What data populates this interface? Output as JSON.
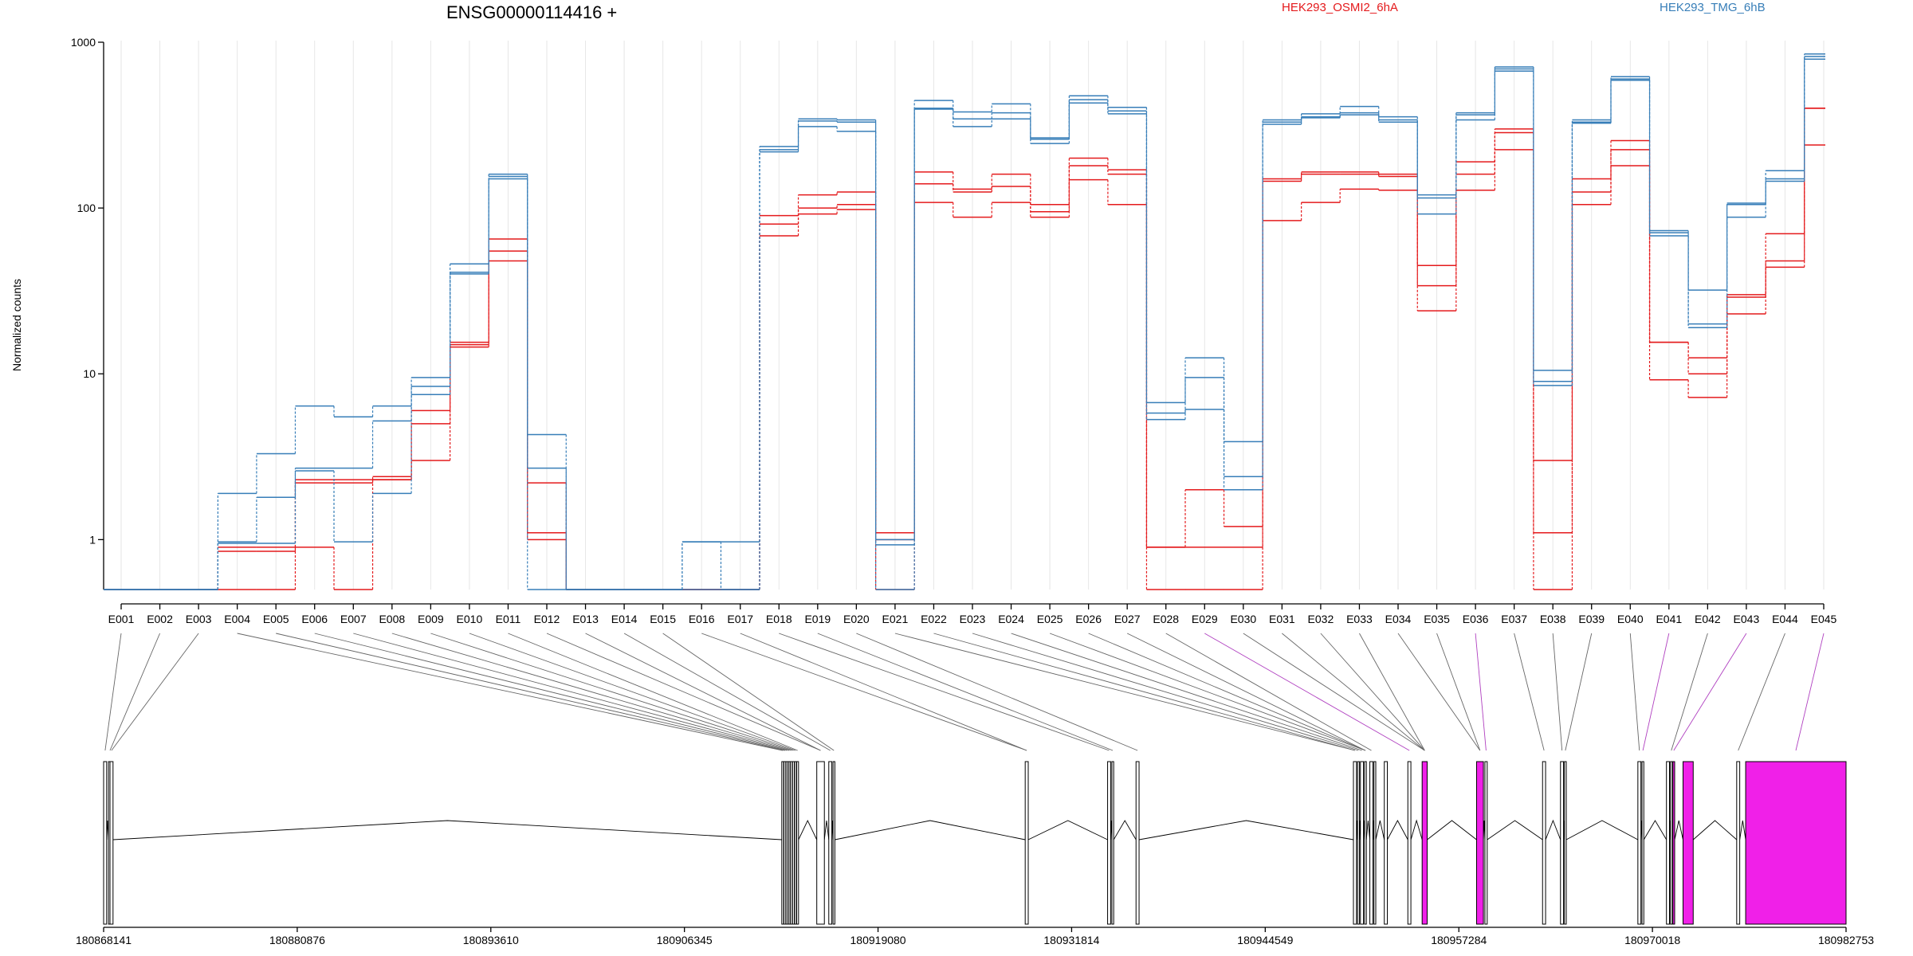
{
  "chart_data": {
    "type": "line",
    "title": "ENSG00000114416 +",
    "ylabel": "Normalized counts",
    "xlabel": "",
    "y_scale": "log",
    "ylim": [
      0.5,
      1000
    ],
    "y_ticks": [
      {
        "value": 1,
        "label": "1"
      },
      {
        "value": 10,
        "label": "10"
      },
      {
        "value": 100,
        "label": "100"
      },
      {
        "value": 1000,
        "label": "1000"
      }
    ],
    "grid": "vertical light lines at each exon bin",
    "legend_position": "top-right",
    "categories": [
      "E001",
      "E002",
      "E003",
      "E004",
      "E005",
      "E006",
      "E007",
      "E008",
      "E009",
      "E010",
      "E011",
      "E012",
      "E013",
      "E014",
      "E015",
      "E016",
      "E017",
      "E018",
      "E019",
      "E020",
      "E021",
      "E022",
      "E023",
      "E024",
      "E025",
      "E026",
      "E027",
      "E028",
      "E029",
      "E030",
      "E031",
      "E032",
      "E033",
      "E034",
      "E035",
      "E036",
      "E037",
      "E038",
      "E039",
      "E040",
      "E041",
      "E042",
      "E043",
      "E044",
      "E045"
    ],
    "highlighted_exons": [
      "E029",
      "E036",
      "E041",
      "E043",
      "E045"
    ],
    "series": [
      {
        "name": "HEK293_OSMI2_6hA",
        "group": "HEK293_OSMI2_6hA",
        "color": "#e41a1c",
        "values": [
          0.5,
          0.5,
          0.5,
          0.9,
          0.9,
          2.3,
          2.3,
          2.4,
          6.0,
          15.5,
          65,
          2.2,
          0.5,
          0.5,
          0.5,
          0.5,
          0.5,
          90,
          120,
          125,
          1.1,
          165,
          130,
          160,
          105,
          200,
          170,
          0.9,
          2.0,
          1.2,
          150,
          165,
          165,
          160,
          45,
          190,
          300,
          3.0,
          150,
          255,
          15.5,
          12.5,
          30,
          70,
          400
        ]
      },
      {
        "name": "HEK293_OSMI2_6hA",
        "group": "HEK293_OSMI2_6hA",
        "color": "#e41a1c",
        "values": [
          0.5,
          0.5,
          0.5,
          0.85,
          0.85,
          2.2,
          2.2,
          2.3,
          5.0,
          15,
          55,
          1.1,
          0.5,
          0.5,
          0.5,
          0.5,
          0.5,
          80,
          100,
          105,
          1.0,
          140,
          125,
          135,
          95,
          180,
          160,
          0.9,
          0.9,
          0.9,
          145,
          160,
          160,
          155,
          34,
          160,
          285,
          1.1,
          125,
          225,
          15.5,
          10,
          29,
          48,
          400
        ]
      },
      {
        "name": "HEK293_OSMI2_6hA",
        "group": "HEK293_OSMI2_6hA",
        "color": "#e41a1c",
        "values": [
          0.5,
          0.5,
          0.5,
          0.5,
          0.5,
          0.9,
          0.5,
          2.3,
          3.0,
          14.5,
          48,
          1.0,
          0.5,
          0.5,
          0.5,
          0.5,
          0.5,
          68,
          92,
          98,
          0.5,
          108,
          88,
          108,
          88,
          148,
          105,
          0.5,
          0.5,
          0.5,
          84,
          108,
          130,
          128,
          24,
          128,
          225,
          0.5,
          105,
          180,
          9.2,
          7.2,
          23,
          44,
          240
        ]
      },
      {
        "name": "HEK293_TMG_6hB",
        "group": "HEK293_TMG_6hB",
        "color": "#377eb8",
        "values": [
          0.5,
          0.5,
          0.5,
          1.9,
          3.3,
          6.4,
          5.5,
          6.4,
          9.5,
          46,
          160,
          4.3,
          0.5,
          0.5,
          0.5,
          0.97,
          0.97,
          235,
          345,
          340,
          1.0,
          445,
          380,
          425,
          265,
          475,
          405,
          6.7,
          12.5,
          3.9,
          340,
          370,
          410,
          355,
          120,
          375,
          710,
          10.5,
          340,
          620,
          73,
          32,
          107,
          168,
          850
        ]
      },
      {
        "name": "HEK293_TMG_6hB",
        "group": "HEK293_TMG_6hB",
        "color": "#377eb8",
        "values": [
          0.5,
          0.5,
          0.5,
          0.97,
          1.8,
          2.7,
          2.7,
          5.2,
          8.4,
          41,
          155,
          2.7,
          0.5,
          0.5,
          0.5,
          0.97,
          0.5,
          225,
          335,
          330,
          0.93,
          400,
          345,
          375,
          260,
          450,
          385,
          5.8,
          9.5,
          2.4,
          330,
          355,
          375,
          340,
          115,
          365,
          690,
          9.0,
          330,
          600,
          71,
          20,
          105,
          150,
          820
        ]
      },
      {
        "name": "HEK293_TMG_6hB",
        "group": "HEK293_TMG_6hB",
        "color": "#377eb8",
        "values": [
          0.5,
          0.5,
          0.5,
          0.95,
          0.95,
          2.6,
          0.97,
          1.9,
          7.5,
          40,
          150,
          0.5,
          0.5,
          0.5,
          0.5,
          0.5,
          0.5,
          218,
          310,
          290,
          0.5,
          395,
          310,
          345,
          245,
          430,
          370,
          5.3,
          6.1,
          2.0,
          320,
          350,
          365,
          330,
          92,
          340,
          670,
          8.5,
          325,
          590,
          68,
          19,
          88,
          145,
          790
        ]
      }
    ],
    "gene_model": {
      "coordinate_ticks": [
        "180868141",
        "180880876",
        "180893610",
        "180906345",
        "180919080",
        "180931814",
        "180944549",
        "180957284",
        "180970018",
        "180982753"
      ],
      "range": [
        180868141,
        180982753
      ],
      "exons": [
        {
          "start": 180868141,
          "end": 180868340,
          "highlight": false
        },
        {
          "start": 180868460,
          "end": 180868660,
          "highlight": false
        },
        {
          "start": 180868560,
          "end": 180868760,
          "highlight": false
        },
        {
          "start": 180912750,
          "end": 180912870,
          "highlight": false
        },
        {
          "start": 180912890,
          "end": 180913010,
          "highlight": false
        },
        {
          "start": 180913030,
          "end": 180913150,
          "highlight": false
        },
        {
          "start": 180913170,
          "end": 180913290,
          "highlight": false
        },
        {
          "start": 180913310,
          "end": 180913430,
          "highlight": false
        },
        {
          "start": 180913450,
          "end": 180913570,
          "highlight": false
        },
        {
          "start": 180913590,
          "end": 180913710,
          "highlight": false
        },
        {
          "start": 180913730,
          "end": 180913850,
          "highlight": false
        },
        {
          "start": 180915050,
          "end": 180915550,
          "highlight": false
        },
        {
          "start": 180915840,
          "end": 180916040,
          "highlight": false
        },
        {
          "start": 180916120,
          "end": 180916240,
          "highlight": false
        },
        {
          "start": 180928760,
          "end": 180928960,
          "highlight": false
        },
        {
          "start": 180934180,
          "end": 180934380,
          "highlight": false
        },
        {
          "start": 180934460,
          "end": 180934580,
          "highlight": false
        },
        {
          "start": 180936050,
          "end": 180936250,
          "highlight": false
        },
        {
          "start": 180950350,
          "end": 180950550,
          "highlight": false
        },
        {
          "start": 180950620,
          "end": 180950740,
          "highlight": false
        },
        {
          "start": 180950810,
          "end": 180951010,
          "highlight": false
        },
        {
          "start": 180951080,
          "end": 180951200,
          "highlight": false
        },
        {
          "start": 180951430,
          "end": 180951630,
          "highlight": false
        },
        {
          "start": 180951700,
          "end": 180951820,
          "highlight": false
        },
        {
          "start": 180952380,
          "end": 180952580,
          "highlight": false
        },
        {
          "start": 180953930,
          "end": 180954130,
          "highlight": false
        },
        {
          "start": 180954870,
          "end": 180955200,
          "highlight": true
        },
        {
          "start": 180958450,
          "end": 180958900,
          "highlight": true
        },
        {
          "start": 180959000,
          "end": 180959150,
          "highlight": false
        },
        {
          "start": 180962790,
          "end": 180962990,
          "highlight": false
        },
        {
          "start": 180963970,
          "end": 180964170,
          "highlight": false
        },
        {
          "start": 180964230,
          "end": 180964350,
          "highlight": false
        },
        {
          "start": 180969060,
          "end": 180969260,
          "highlight": false
        },
        {
          "start": 180969330,
          "end": 180969450,
          "highlight": false
        },
        {
          "start": 180970940,
          "end": 180971140,
          "highlight": false
        },
        {
          "start": 180971200,
          "end": 180971320,
          "highlight": false
        },
        {
          "start": 180971360,
          "end": 180971480,
          "highlight": true
        },
        {
          "start": 180972030,
          "end": 180972700,
          "highlight": true
        },
        {
          "start": 180975560,
          "end": 180975760,
          "highlight": false
        },
        {
          "start": 180976150,
          "end": 180982753,
          "highlight": true
        }
      ],
      "bin_to_exon": [
        0,
        1,
        2,
        3,
        4,
        5,
        6,
        7,
        8,
        9,
        10,
        11,
        11,
        12,
        13,
        14,
        14,
        15,
        16,
        17,
        18,
        18,
        19,
        20,
        21,
        21,
        21,
        22,
        25,
        26,
        26,
        26,
        26,
        27,
        27,
        28,
        29,
        30,
        31,
        32,
        33,
        35,
        36,
        38,
        39
      ]
    },
    "colors": {
      "OSMI2": "#e41a1c",
      "TMG": "#377eb8",
      "highlight_fill": "#f020e8",
      "highlight_link": "#b040c0",
      "grid": "#e6e6e6"
    }
  }
}
